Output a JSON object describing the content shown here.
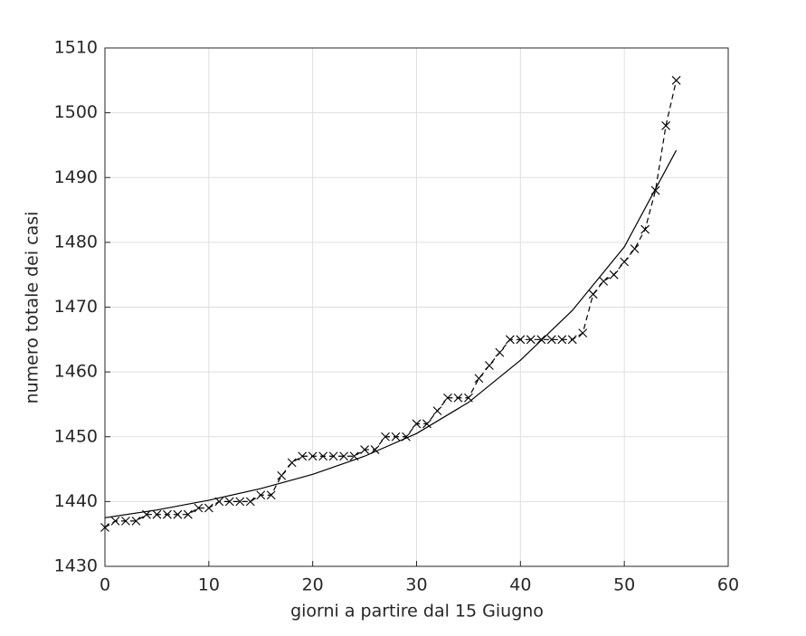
{
  "chart_data": {
    "type": "line",
    "xlabel": "giorni a partire dal 15 Giugno",
    "ylabel": "numero totale dei casi",
    "xlim": [
      0,
      60
    ],
    "xticks": [
      0,
      10,
      20,
      30,
      40,
      50,
      60
    ],
    "ylim": [
      1430,
      1510
    ],
    "yticks": [
      1430,
      1440,
      1450,
      1460,
      1470,
      1480,
      1490,
      1500,
      1510
    ],
    "grid": true,
    "series": [
      {
        "color": "#000000",
        "dash": true,
        "marker": "x",
        "x": [
          0,
          1,
          2,
          3,
          4,
          5,
          6,
          7,
          8,
          9,
          10,
          11,
          12,
          13,
          14,
          15,
          16,
          17,
          18,
          19,
          20,
          21,
          22,
          23,
          24,
          25,
          26,
          27,
          28,
          29,
          30,
          31,
          32,
          33,
          34,
          35,
          36,
          37,
          38,
          39,
          40,
          41,
          42,
          43,
          44,
          45,
          46,
          47,
          48,
          49,
          50,
          51,
          52,
          53,
          54,
          55
        ],
        "values": [
          1436,
          1437,
          1437,
          1437,
          1438,
          1438,
          1438,
          1438,
          1438,
          1439,
          1439,
          1440,
          1440,
          1440,
          1440,
          1441,
          1441,
          1444,
          1446,
          1447,
          1447,
          1447,
          1447,
          1447,
          1447,
          1448,
          1448,
          1450,
          1450,
          1450,
          1452,
          1452,
          1454,
          1456,
          1456,
          1456,
          1459,
          1461,
          1463,
          1465,
          1465,
          1465,
          1465,
          1465,
          1465,
          1465,
          1466,
          1472,
          1474,
          1475,
          1477,
          1479,
          1482,
          1488,
          1498,
          1505
        ]
      },
      {
        "color": "#000000",
        "dash": false,
        "x": [
          0,
          5,
          10,
          15,
          20,
          25,
          30,
          35,
          40,
          45,
          50,
          55
        ],
        "values": [
          1437.5,
          1438.7,
          1440.2,
          1442,
          1444.2,
          1447,
          1450.5,
          1455.3,
          1461.8,
          1469.5,
          1479.3,
          1494.2
        ]
      }
    ]
  }
}
